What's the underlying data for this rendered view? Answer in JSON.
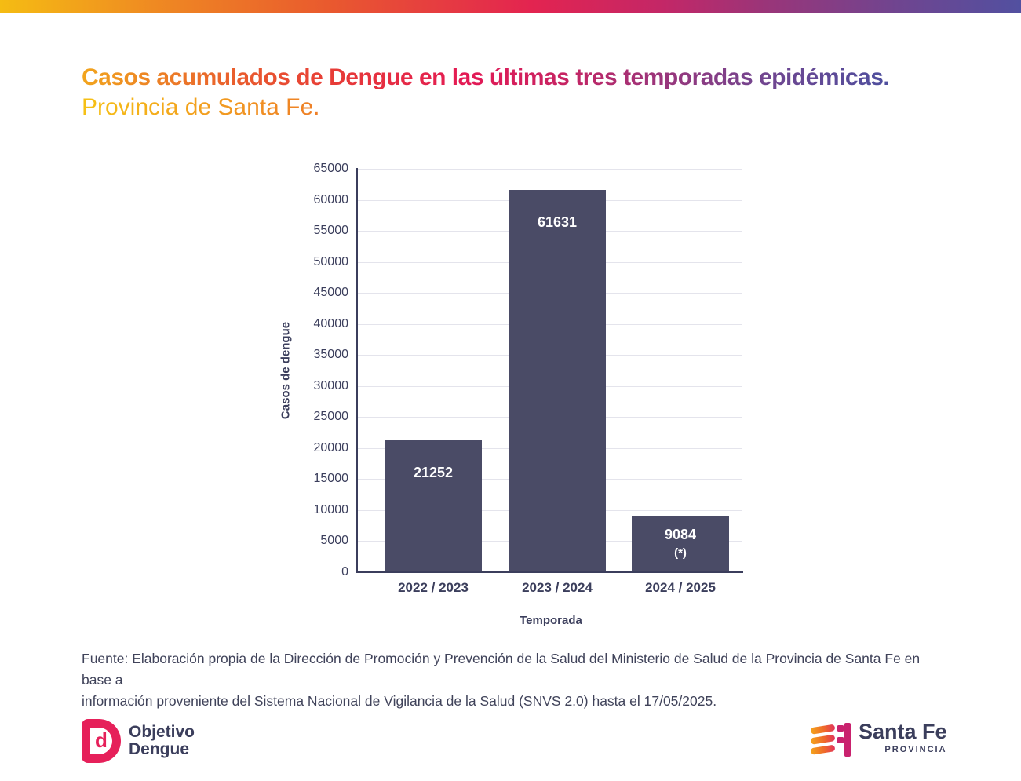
{
  "header": {
    "title": "Casos acumulados de Dengue en las últimas tres temporadas epidémicas.",
    "subtitle": "Provincia de Santa Fe."
  },
  "chart_data": {
    "type": "bar",
    "categories": [
      "2022 / 2023",
      "2023 / 2024",
      "2024 / 2025"
    ],
    "values": [
      21252,
      61631,
      9084
    ],
    "bar_notes": [
      "",
      "",
      "(*)"
    ],
    "xlabel": "Temporada",
    "ylabel": "Casos de dengue",
    "ylim": [
      0,
      65000
    ],
    "yticks": [
      0,
      5000,
      10000,
      15000,
      20000,
      25000,
      30000,
      35000,
      40000,
      45000,
      50000,
      55000,
      60000,
      65000
    ],
    "grid": true,
    "legend": "none",
    "bar_color": "#4A4B66",
    "value_label_color": "#FFFFFF"
  },
  "footer": {
    "source_lines": [
      "Fuente: Elaboración propia de la Dirección de Promoción y Prevención de la Salud del Ministerio de Salud de la Provincia de Santa Fe en base a",
      "información proveniente del Sistema Nacional de Vigilancia de la Salud (SNVS 2.0) hasta el 17/05/2025."
    ]
  },
  "logos": {
    "objetivo_dengue": {
      "icon": "d-monogram-icon",
      "monogram": "d",
      "line1": "Objetivo",
      "line2": "Dengue",
      "color": "#E6205A"
    },
    "santa_fe": {
      "icon": "flag-stripes-icon",
      "name": "Santa Fe",
      "subtitle": "PROVINCIA"
    }
  },
  "colors": {
    "accent_gradient": [
      "#F5BC13",
      "#EF8A22",
      "#E95A2E",
      "#E32450",
      "#C32767",
      "#9A3579",
      "#6F4590",
      "#5250A0"
    ],
    "title_gradient": [
      "#F2A51D",
      "#E95A2E",
      "#E31955",
      "#A03378",
      "#4E4F9E"
    ],
    "subtitle_gradient": [
      "#F6C115",
      "#EE7E27"
    ],
    "axis_text": "#3B3E5C",
    "gridline": "#E4E4EC",
    "santa_fe_magenta": "#C9226E"
  }
}
